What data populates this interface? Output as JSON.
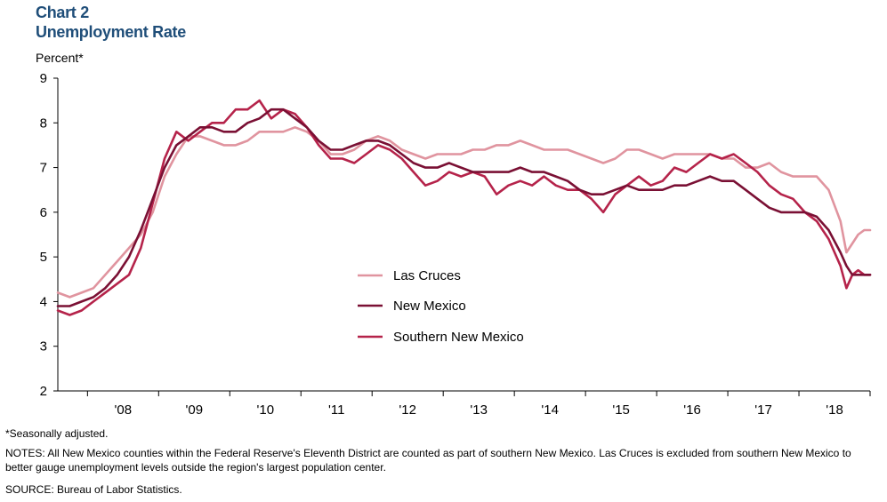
{
  "header": {
    "chart_number": "Chart 2",
    "chart_title": "Unemployment Rate",
    "unit_label": "Percent*"
  },
  "footnotes": {
    "seasonal": "*Seasonally adjusted.",
    "notes": "NOTES: All New Mexico counties within the Federal Reserve's Eleventh District are counted as part of southern New Mexico. Las Cruces is excluded from southern New Mexico to better gauge unemployment levels outside the region's largest population center.",
    "source": "SOURCE: Bureau of Labor Statistics."
  },
  "chart_data": {
    "type": "line",
    "title": "Unemployment Rate",
    "ylabel": "Percent*",
    "ylim": [
      2,
      9
    ],
    "yticks": [
      2,
      3,
      4,
      5,
      6,
      7,
      8,
      9
    ],
    "xlim": [
      2007.583,
      2018.75
    ],
    "xtick_labels": [
      "'08",
      "'09",
      "'10",
      "'11",
      "'12",
      "'13",
      "'14",
      "'15",
      "'16",
      "'17",
      "'18"
    ],
    "xtick_years": [
      2008,
      2009,
      2010,
      2011,
      2012,
      2013,
      2014,
      2015,
      2016,
      2017,
      2018
    ],
    "legend_position": "center-left",
    "series": [
      {
        "name": "Las Cruces",
        "color": "#e0949f",
        "points": [
          [
            2007.583,
            4.2
          ],
          [
            2007.75,
            4.1
          ],
          [
            2007.917,
            4.2
          ],
          [
            2008.083,
            4.3
          ],
          [
            2008.25,
            4.6
          ],
          [
            2008.417,
            4.9
          ],
          [
            2008.583,
            5.2
          ],
          [
            2008.75,
            5.5
          ],
          [
            2008.917,
            6.0
          ],
          [
            2009.083,
            6.8
          ],
          [
            2009.25,
            7.3
          ],
          [
            2009.417,
            7.7
          ],
          [
            2009.583,
            7.7
          ],
          [
            2009.75,
            7.6
          ],
          [
            2009.917,
            7.5
          ],
          [
            2010.083,
            7.5
          ],
          [
            2010.25,
            7.6
          ],
          [
            2010.417,
            7.8
          ],
          [
            2010.583,
            7.8
          ],
          [
            2010.75,
            7.8
          ],
          [
            2010.917,
            7.9
          ],
          [
            2011.083,
            7.8
          ],
          [
            2011.25,
            7.6
          ],
          [
            2011.417,
            7.3
          ],
          [
            2011.583,
            7.3
          ],
          [
            2011.75,
            7.4
          ],
          [
            2011.917,
            7.6
          ],
          [
            2012.083,
            7.7
          ],
          [
            2012.25,
            7.6
          ],
          [
            2012.417,
            7.4
          ],
          [
            2012.583,
            7.3
          ],
          [
            2012.75,
            7.2
          ],
          [
            2012.917,
            7.3
          ],
          [
            2013.083,
            7.3
          ],
          [
            2013.25,
            7.3
          ],
          [
            2013.417,
            7.4
          ],
          [
            2013.583,
            7.4
          ],
          [
            2013.75,
            7.5
          ],
          [
            2013.917,
            7.5
          ],
          [
            2014.083,
            7.6
          ],
          [
            2014.25,
            7.5
          ],
          [
            2014.417,
            7.4
          ],
          [
            2014.583,
            7.4
          ],
          [
            2014.75,
            7.4
          ],
          [
            2014.917,
            7.3
          ],
          [
            2015.083,
            7.2
          ],
          [
            2015.25,
            7.1
          ],
          [
            2015.417,
            7.2
          ],
          [
            2015.583,
            7.4
          ],
          [
            2015.75,
            7.4
          ],
          [
            2015.917,
            7.3
          ],
          [
            2016.083,
            7.2
          ],
          [
            2016.25,
            7.3
          ],
          [
            2016.417,
            7.3
          ],
          [
            2016.583,
            7.3
          ],
          [
            2016.75,
            7.3
          ],
          [
            2016.917,
            7.2
          ],
          [
            2017.083,
            7.2
          ],
          [
            2017.25,
            7.0
          ],
          [
            2017.417,
            7.0
          ],
          [
            2017.583,
            7.1
          ],
          [
            2017.75,
            6.9
          ],
          [
            2017.917,
            6.8
          ],
          [
            2018.083,
            6.8
          ],
          [
            2018.25,
            6.8
          ],
          [
            2018.417,
            6.5
          ],
          [
            2018.583,
            5.8
          ],
          [
            2018.667,
            5.1
          ],
          [
            2018.75,
            5.3
          ],
          [
            2018.833,
            5.5
          ],
          [
            2018.917,
            5.6
          ],
          [
            2019.0,
            5.6
          ]
        ]
      },
      {
        "name": "New Mexico",
        "color": "#7a1034",
        "points": [
          [
            2007.583,
            3.9
          ],
          [
            2007.75,
            3.9
          ],
          [
            2007.917,
            4.0
          ],
          [
            2008.083,
            4.1
          ],
          [
            2008.25,
            4.3
          ],
          [
            2008.417,
            4.6
          ],
          [
            2008.583,
            5.0
          ],
          [
            2008.75,
            5.6
          ],
          [
            2008.917,
            6.3
          ],
          [
            2009.083,
            7.0
          ],
          [
            2009.25,
            7.5
          ],
          [
            2009.417,
            7.7
          ],
          [
            2009.583,
            7.9
          ],
          [
            2009.75,
            7.9
          ],
          [
            2009.917,
            7.8
          ],
          [
            2010.083,
            7.8
          ],
          [
            2010.25,
            8.0
          ],
          [
            2010.417,
            8.1
          ],
          [
            2010.583,
            8.3
          ],
          [
            2010.75,
            8.3
          ],
          [
            2010.917,
            8.1
          ],
          [
            2011.083,
            7.9
          ],
          [
            2011.25,
            7.6
          ],
          [
            2011.417,
            7.4
          ],
          [
            2011.583,
            7.4
          ],
          [
            2011.75,
            7.5
          ],
          [
            2011.917,
            7.6
          ],
          [
            2012.083,
            7.6
          ],
          [
            2012.25,
            7.5
          ],
          [
            2012.417,
            7.3
          ],
          [
            2012.583,
            7.1
          ],
          [
            2012.75,
            7.0
          ],
          [
            2012.917,
            7.0
          ],
          [
            2013.083,
            7.1
          ],
          [
            2013.25,
            7.0
          ],
          [
            2013.417,
            6.9
          ],
          [
            2013.583,
            6.9
          ],
          [
            2013.75,
            6.9
          ],
          [
            2013.917,
            6.9
          ],
          [
            2014.083,
            7.0
          ],
          [
            2014.25,
            6.9
          ],
          [
            2014.417,
            6.9
          ],
          [
            2014.583,
            6.8
          ],
          [
            2014.75,
            6.7
          ],
          [
            2014.917,
            6.5
          ],
          [
            2015.083,
            6.4
          ],
          [
            2015.25,
            6.4
          ],
          [
            2015.417,
            6.5
          ],
          [
            2015.583,
            6.6
          ],
          [
            2015.75,
            6.5
          ],
          [
            2015.917,
            6.5
          ],
          [
            2016.083,
            6.5
          ],
          [
            2016.25,
            6.6
          ],
          [
            2016.417,
            6.6
          ],
          [
            2016.583,
            6.7
          ],
          [
            2016.75,
            6.8
          ],
          [
            2016.917,
            6.7
          ],
          [
            2017.083,
            6.7
          ],
          [
            2017.25,
            6.5
          ],
          [
            2017.417,
            6.3
          ],
          [
            2017.583,
            6.1
          ],
          [
            2017.75,
            6.0
          ],
          [
            2017.917,
            6.0
          ],
          [
            2018.083,
            6.0
          ],
          [
            2018.25,
            5.9
          ],
          [
            2018.417,
            5.6
          ],
          [
            2018.583,
            5.1
          ],
          [
            2018.667,
            4.8
          ],
          [
            2018.75,
            4.6
          ],
          [
            2018.833,
            4.6
          ],
          [
            2018.917,
            4.6
          ],
          [
            2019.0,
            4.6
          ]
        ]
      },
      {
        "name": "Southern New Mexico",
        "color": "#b5234a",
        "points": [
          [
            2007.583,
            3.8
          ],
          [
            2007.75,
            3.7
          ],
          [
            2007.917,
            3.8
          ],
          [
            2008.083,
            4.0
          ],
          [
            2008.25,
            4.2
          ],
          [
            2008.417,
            4.4
          ],
          [
            2008.583,
            4.6
          ],
          [
            2008.75,
            5.2
          ],
          [
            2008.917,
            6.2
          ],
          [
            2009.083,
            7.2
          ],
          [
            2009.25,
            7.8
          ],
          [
            2009.417,
            7.6
          ],
          [
            2009.583,
            7.8
          ],
          [
            2009.75,
            8.0
          ],
          [
            2009.917,
            8.0
          ],
          [
            2010.083,
            8.3
          ],
          [
            2010.25,
            8.3
          ],
          [
            2010.417,
            8.5
          ],
          [
            2010.583,
            8.1
          ],
          [
            2010.75,
            8.3
          ],
          [
            2010.917,
            8.2
          ],
          [
            2011.083,
            7.9
          ],
          [
            2011.25,
            7.5
          ],
          [
            2011.417,
            7.2
          ],
          [
            2011.583,
            7.2
          ],
          [
            2011.75,
            7.1
          ],
          [
            2011.917,
            7.3
          ],
          [
            2012.083,
            7.5
          ],
          [
            2012.25,
            7.4
          ],
          [
            2012.417,
            7.2
          ],
          [
            2012.583,
            6.9
          ],
          [
            2012.75,
            6.6
          ],
          [
            2012.917,
            6.7
          ],
          [
            2013.083,
            6.9
          ],
          [
            2013.25,
            6.8
          ],
          [
            2013.417,
            6.9
          ],
          [
            2013.583,
            6.8
          ],
          [
            2013.75,
            6.4
          ],
          [
            2013.917,
            6.6
          ],
          [
            2014.083,
            6.7
          ],
          [
            2014.25,
            6.6
          ],
          [
            2014.417,
            6.8
          ],
          [
            2014.583,
            6.6
          ],
          [
            2014.75,
            6.5
          ],
          [
            2014.917,
            6.5
          ],
          [
            2015.083,
            6.3
          ],
          [
            2015.25,
            6.0
          ],
          [
            2015.417,
            6.4
          ],
          [
            2015.583,
            6.6
          ],
          [
            2015.75,
            6.8
          ],
          [
            2015.917,
            6.6
          ],
          [
            2016.083,
            6.7
          ],
          [
            2016.25,
            7.0
          ],
          [
            2016.417,
            6.9
          ],
          [
            2016.583,
            7.1
          ],
          [
            2016.75,
            7.3
          ],
          [
            2016.917,
            7.2
          ],
          [
            2017.083,
            7.3
          ],
          [
            2017.25,
            7.1
          ],
          [
            2017.417,
            6.9
          ],
          [
            2017.583,
            6.6
          ],
          [
            2017.75,
            6.4
          ],
          [
            2017.917,
            6.3
          ],
          [
            2018.083,
            6.0
          ],
          [
            2018.25,
            5.8
          ],
          [
            2018.417,
            5.4
          ],
          [
            2018.583,
            4.8
          ],
          [
            2018.667,
            4.3
          ],
          [
            2018.75,
            4.6
          ],
          [
            2018.833,
            4.7
          ],
          [
            2018.917,
            4.6
          ],
          [
            2019.0,
            4.6
          ]
        ]
      }
    ]
  }
}
